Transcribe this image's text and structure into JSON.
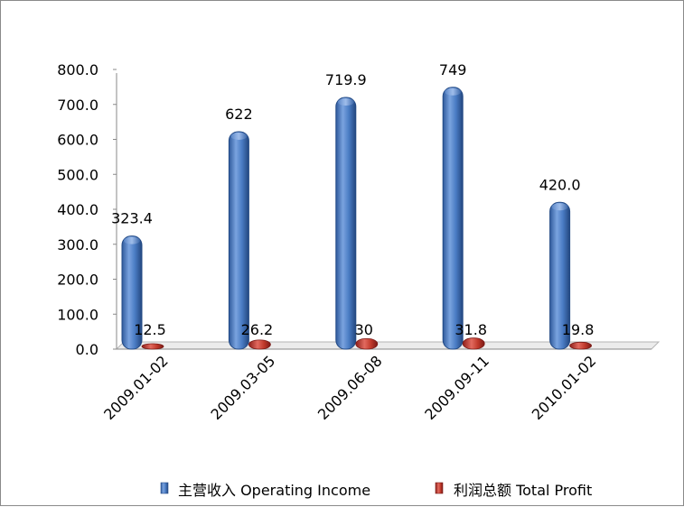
{
  "chart_data": {
    "type": "bar",
    "categories": [
      "2009.01-02",
      "2009.03-05",
      "2009.06-08",
      "2009.09-11",
      "2010.01-02"
    ],
    "series": [
      {
        "name": "主营收入 Operating Income",
        "values": [
          323.4,
          622,
          719.9,
          749,
          420.0
        ],
        "labels": [
          "323.4",
          "622",
          "719.9",
          "749",
          "420.0"
        ],
        "color": "#4a7cc4"
      },
      {
        "name": "利润总额 Total Profit",
        "values": [
          12.5,
          26.2,
          30,
          31.8,
          19.8
        ],
        "labels": [
          "12.5",
          "26.2",
          "30",
          "31.8",
          "19.8"
        ],
        "color": "#c0392b"
      }
    ],
    "yticks": [
      "0.0",
      "100.0",
      "200.0",
      "300.0",
      "400.0",
      "500.0",
      "600.0",
      "700.0",
      "800.0"
    ],
    "ylim": [
      0,
      800
    ],
    "grid": false,
    "legend_position": "bottom"
  }
}
